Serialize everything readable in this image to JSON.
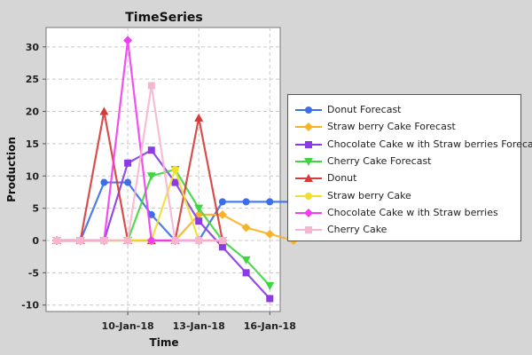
{
  "chart_data": {
    "type": "line",
    "title": "TimeSeries",
    "xlabel": "Time",
    "ylabel": "Production",
    "x": [
      "07-Jan-18",
      "08-Jan-18",
      "09-Jan-18",
      "10-Jan-18",
      "11-Jan-18",
      "12-Jan-18",
      "13-Jan-18",
      "14-Jan-18",
      "15-Jan-18",
      "16-Jan-18",
      "17-Jan-18"
    ],
    "x_ticks": [
      "10-Jan-18",
      "13-Jan-18",
      "16-Jan-18"
    ],
    "ylim": [
      -11,
      33
    ],
    "y_ticks": [
      30,
      25,
      20,
      15,
      10,
      5,
      0,
      -5,
      -10
    ],
    "grid": true,
    "legend_position": "right",
    "series": [
      {
        "name": "Donut Forecast",
        "color": "#3b6ee8",
        "marker": "circle",
        "x": [
          "07-Jan-18",
          "08-Jan-18",
          "09-Jan-18",
          "10-Jan-18",
          "11-Jan-18",
          "12-Jan-18",
          "13-Jan-18",
          "14-Jan-18",
          "15-Jan-18",
          "16-Jan-18",
          "17-Jan-18"
        ],
        "values": [
          0,
          0,
          9,
          9,
          4,
          0,
          0,
          6,
          6,
          6,
          6
        ]
      },
      {
        "name": "Straw berry Cake Forecast",
        "color": "#f7b326",
        "marker": "diamond",
        "x": [
          "07-Jan-18",
          "08-Jan-18",
          "09-Jan-18",
          "10-Jan-18",
          "11-Jan-18",
          "12-Jan-18",
          "13-Jan-18",
          "14-Jan-18",
          "15-Jan-18",
          "16-Jan-18",
          "17-Jan-18"
        ],
        "values": [
          0,
          0,
          0,
          0,
          0,
          0,
          4,
          4,
          2,
          1,
          0
        ]
      },
      {
        "name": "Chocolate Cake w ith Straw berries Forecast",
        "color": "#8a3ae6",
        "marker": "square",
        "x": [
          "07-Jan-18",
          "08-Jan-18",
          "09-Jan-18",
          "10-Jan-18",
          "11-Jan-18",
          "12-Jan-18",
          "13-Jan-18",
          "14-Jan-18",
          "15-Jan-18",
          "16-Jan-18",
          "17-Jan-18"
        ],
        "values": [
          0,
          0,
          0,
          12,
          14,
          9,
          3,
          -1,
          -5,
          -9,
          null
        ]
      },
      {
        "name": "Cherry Cake Forecast",
        "color": "#3ed63e",
        "marker": "triangle-down",
        "x": [
          "07-Jan-18",
          "08-Jan-18",
          "09-Jan-18",
          "10-Jan-18",
          "11-Jan-18",
          "12-Jan-18",
          "13-Jan-18",
          "14-Jan-18",
          "15-Jan-18",
          "16-Jan-18",
          "17-Jan-18"
        ],
        "values": [
          0,
          0,
          0,
          0,
          10,
          11,
          5,
          0,
          -3,
          -7,
          null
        ]
      },
      {
        "name": "Donut",
        "color": "#d63a3a",
        "marker": "triangle-up",
        "x": [
          "07-Jan-18",
          "08-Jan-18",
          "09-Jan-18",
          "10-Jan-18",
          "11-Jan-18",
          "12-Jan-18",
          "13-Jan-18",
          "14-Jan-18"
        ],
        "values": [
          0,
          0,
          20,
          0,
          0,
          0,
          19,
          0
        ]
      },
      {
        "name": "Straw berry Cake",
        "color": "#f0e02a",
        "marker": "circle",
        "x": [
          "07-Jan-18",
          "08-Jan-18",
          "09-Jan-18",
          "10-Jan-18",
          "11-Jan-18",
          "12-Jan-18",
          "13-Jan-18",
          "14-Jan-18"
        ],
        "values": [
          0,
          0,
          0,
          0,
          0,
          11,
          0,
          0
        ]
      },
      {
        "name": "Chocolate Cake w ith Straw berries",
        "color": "#f23cf2",
        "marker": "diamond",
        "x": [
          "07-Jan-18",
          "08-Jan-18",
          "09-Jan-18",
          "10-Jan-18",
          "11-Jan-18",
          "12-Jan-18",
          "13-Jan-18",
          "14-Jan-18"
        ],
        "values": [
          0,
          0,
          0,
          31,
          0,
          0,
          0,
          0
        ]
      },
      {
        "name": "Cherry Cake",
        "color": "#f7b6cf",
        "marker": "square",
        "x": [
          "07-Jan-18",
          "08-Jan-18",
          "09-Jan-18",
          "10-Jan-18",
          "11-Jan-18",
          "12-Jan-18",
          "13-Jan-18",
          "14-Jan-18"
        ],
        "values": [
          0,
          0,
          0,
          0,
          24,
          0,
          0,
          0
        ]
      }
    ]
  }
}
